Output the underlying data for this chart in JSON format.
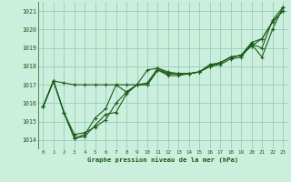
{
  "bg_color": "#cceedd",
  "grid_color": "#99ccbb",
  "line_color": "#1a5c1a",
  "ylim": [
    1013.5,
    1021.5
  ],
  "xlim": [
    -0.5,
    23.5
  ],
  "yticks": [
    1014,
    1015,
    1016,
    1017,
    1018,
    1019,
    1020,
    1021
  ],
  "xticks": [
    0,
    1,
    2,
    3,
    4,
    5,
    6,
    7,
    8,
    9,
    10,
    11,
    12,
    13,
    14,
    15,
    16,
    17,
    18,
    19,
    20,
    21,
    22,
    23
  ],
  "xlabel": "Graphe pression niveau de la mer (hPa)",
  "series": [
    [
      1015.8,
      1017.2,
      1017.1,
      1017.0,
      1017.0,
      1017.0,
      1017.0,
      1017.0,
      1017.0,
      1017.0,
      1017.0,
      1017.8,
      1017.6,
      1017.6,
      1017.6,
      1017.7,
      1018.0,
      1018.1,
      1018.4,
      1018.5,
      1019.2,
      1018.5,
      1020.0,
      1021.2
    ],
    [
      1015.8,
      1017.2,
      1015.5,
      1014.1,
      1014.2,
      1014.8,
      1015.4,
      1015.5,
      1016.5,
      1017.0,
      1017.8,
      1017.9,
      1017.7,
      1017.6,
      1017.6,
      1017.7,
      1018.0,
      1018.2,
      1018.5,
      1018.6,
      1019.2,
      1019.0,
      1020.5,
      1021.2
    ],
    [
      1015.8,
      1017.2,
      1015.5,
      1014.3,
      1014.4,
      1014.7,
      1015.1,
      1016.0,
      1016.6,
      1017.0,
      1017.0,
      1017.8,
      1017.5,
      1017.5,
      1017.6,
      1017.7,
      1018.1,
      1018.2,
      1018.5,
      1018.6,
      1019.1,
      1019.5,
      1020.4,
      1021.0
    ],
    [
      1015.8,
      1017.2,
      1015.5,
      1014.1,
      1014.3,
      1015.2,
      1015.7,
      1017.0,
      1016.6,
      1017.0,
      1017.1,
      1017.9,
      1017.6,
      1017.6,
      1017.6,
      1017.7,
      1018.0,
      1018.2,
      1018.5,
      1018.6,
      1019.3,
      1019.5,
      1020.4,
      1021.0
    ]
  ]
}
